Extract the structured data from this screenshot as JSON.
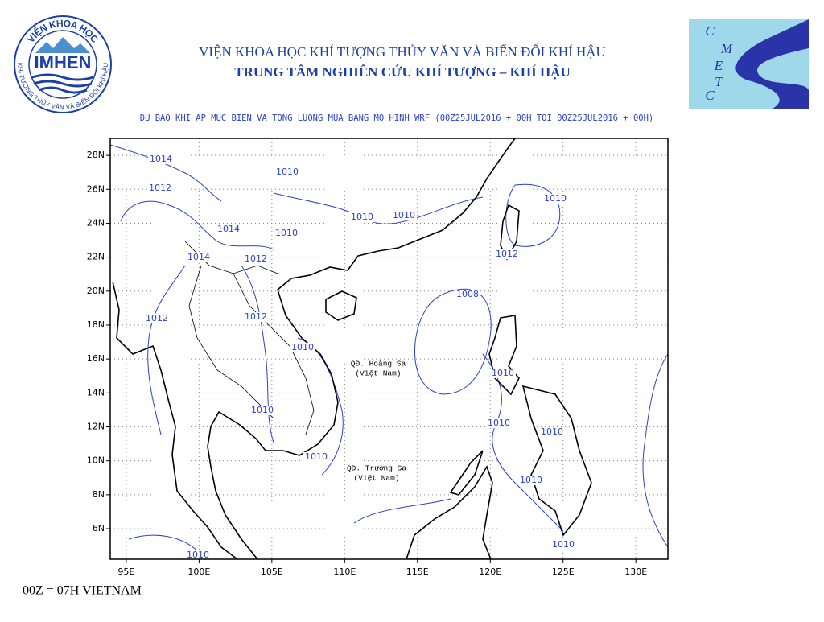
{
  "header": {
    "institute": "VIỆN KHOA HỌC KHÍ TƯỢNG THỦY VĂN VÀ BIẾN ĐỔI KHÍ HẬU",
    "center": "TRUNG TÂM NGHIÊN CỨU KHÍ TƯỢNG – KHÍ HẬU"
  },
  "logos": {
    "imhen": {
      "top_text": "VIỆN KHOA HỌC",
      "name": "IMHEN",
      "bottom_text": "KHÍ TƯỢNG THỦY VĂN VÀ BIẾN ĐỔI KHÍ HẬU"
    },
    "cmetc": {
      "letters": [
        "C",
        "M",
        "E",
        "T",
        "C"
      ]
    }
  },
  "map": {
    "title": "DU BAO KHI AP MUC BIEN VA TONG LUONG MUA BANG MO HINH WRF (00Z25JUL2016 + 00H TOI 00Z25JUL2016 + 00H)",
    "xlim": [
      93.9,
      132.2
    ],
    "ylim": [
      4.2,
      29.0
    ],
    "xticks": [
      {
        "value": 95,
        "label": "95E"
      },
      {
        "value": 100,
        "label": "100E"
      },
      {
        "value": 105,
        "label": "105E"
      },
      {
        "value": 110,
        "label": "110E"
      },
      {
        "value": 115,
        "label": "115E"
      },
      {
        "value": 120,
        "label": "120E"
      },
      {
        "value": 125,
        "label": "125E"
      },
      {
        "value": 130,
        "label": "130E"
      }
    ],
    "yticks": [
      {
        "value": 6,
        "label": "6N"
      },
      {
        "value": 8,
        "label": "8N"
      },
      {
        "value": 10,
        "label": "10N"
      },
      {
        "value": 12,
        "label": "12N"
      },
      {
        "value": 14,
        "label": "14N"
      },
      {
        "value": 16,
        "label": "16N"
      },
      {
        "value": 18,
        "label": "18N"
      },
      {
        "value": 20,
        "label": "20N"
      },
      {
        "value": 22,
        "label": "22N"
      },
      {
        "value": 24,
        "label": "24N"
      },
      {
        "value": 26,
        "label": "26N"
      },
      {
        "value": 28,
        "label": "28N"
      }
    ],
    "grid": true,
    "contour_color": "#2a3fd0",
    "contour_labels": [
      1014,
      1012,
      1010,
      1010,
      1010,
      1010,
      1014,
      1010,
      1014,
      1012,
      1012,
      1008,
      1012,
      1012,
      1010,
      1010,
      1010,
      1010,
      1010,
      1010,
      1010,
      1010,
      1010
    ],
    "places": [
      {
        "name": "QĐ. Hoàng Sa",
        "note": "(Việt Nam)"
      },
      {
        "name": "QĐ. Trường Sa",
        "note": "(Việt Nam)"
      }
    ]
  },
  "footer": "00Z = 07H VIETNAM"
}
